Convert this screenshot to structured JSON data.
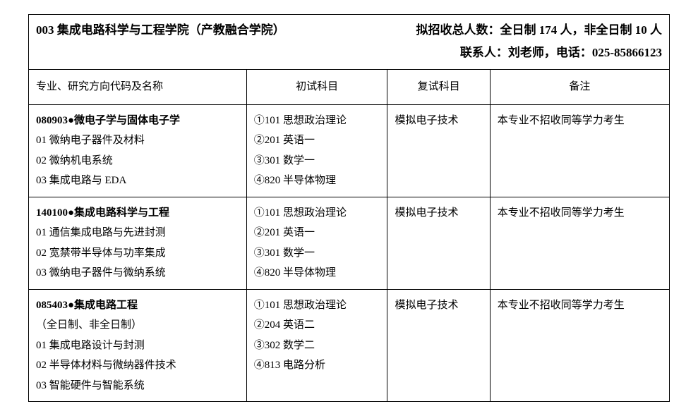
{
  "header": {
    "left": "003 集成电路科学与工程学院（产教融合学院）",
    "right_line1": "拟招收总人数：全日制 174 人，非全日制 10 人",
    "right_line2": "联系人：刘老师，电话：025-85866123"
  },
  "columns": {
    "c1": "专业、研究方向代码及名称",
    "c2": "初试科目",
    "c3": "复试科目",
    "c4": "备注"
  },
  "rows": [
    {
      "col1": [
        {
          "text": "080903●微电子学与固体电子学",
          "bold": true
        },
        {
          "text": "01 微纳电子器件及材料",
          "bold": false
        },
        {
          "text": "02 微纳机电系统",
          "bold": false
        },
        {
          "text": "03 集成电路与 EDA",
          "bold": false
        }
      ],
      "col2": [
        "①101 思想政治理论",
        "②201 英语一",
        "③301 数学一",
        "④820 半导体物理"
      ],
      "col3": "模拟电子技术",
      "col4": "本专业不招收同等学力考生"
    },
    {
      "col1": [
        {
          "text": "140100●集成电路科学与工程",
          "bold": true
        },
        {
          "text": "01 通信集成电路与先进封测",
          "bold": false
        },
        {
          "text": "02 宽禁带半导体与功率集成",
          "bold": false
        },
        {
          "text": "03 微纳电子器件与微纳系统",
          "bold": false
        }
      ],
      "col2": [
        "①101 思想政治理论",
        "②201 英语一",
        "③301 数学一",
        "④820 半导体物理"
      ],
      "col3": "模拟电子技术",
      "col4": "本专业不招收同等学力考生"
    },
    {
      "col1": [
        {
          "text": "085403●集成电路工程",
          "bold": true
        },
        {
          "text": "（全日制、非全日制）",
          "bold": false
        },
        {
          "text": "01 集成电路设计与封测",
          "bold": false
        },
        {
          "text": "02 半导体材料与微纳器件技术",
          "bold": false
        },
        {
          "text": "03 智能硬件与智能系统",
          "bold": false
        }
      ],
      "col2": [
        "①101 思想政治理论",
        "②204 英语二",
        "③302 数学二",
        "④813 电路分析"
      ],
      "col3": "模拟电子技术",
      "col4": "本专业不招收同等学力考生"
    }
  ]
}
